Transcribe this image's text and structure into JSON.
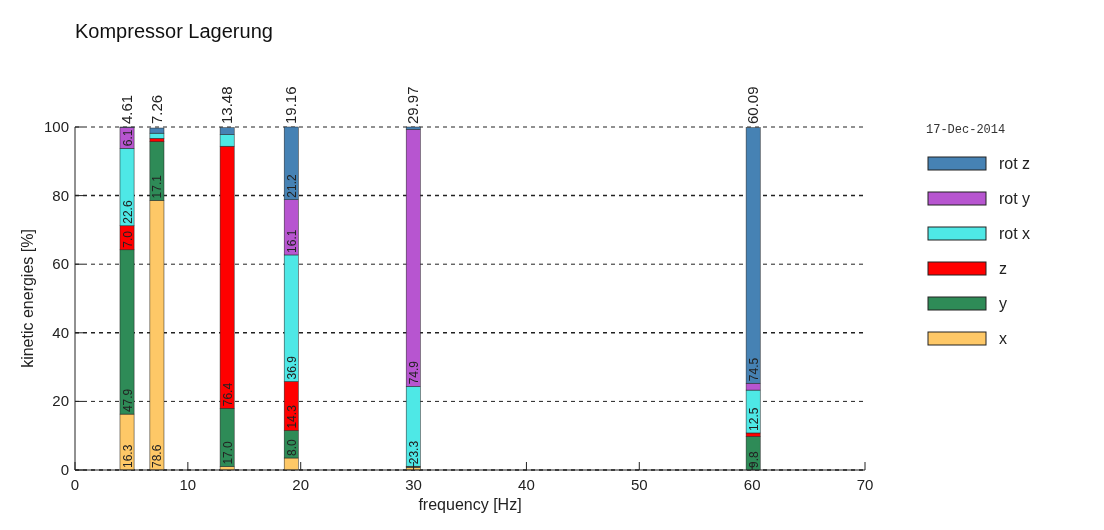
{
  "chart_data": {
    "type": "bar",
    "stacked": true,
    "title": "Kompressor Lagerung",
    "xlabel": "frequency [Hz]",
    "ylabel": "kinetic energies [%]",
    "legend_title": "17-Dec-2014",
    "x": [
      4.61,
      7.26,
      13.48,
      19.16,
      29.97,
      60.09
    ],
    "series": [
      {
        "name": "x",
        "color": "#fec867",
        "values": [
          16.3,
          78.6,
          1.0,
          3.5,
          0.8,
          null
        ],
        "value_labels": [
          "16.3",
          "78.6",
          null,
          null,
          null,
          null
        ]
      },
      {
        "name": "y",
        "color": "#2e8b57",
        "values": [
          47.9,
          17.1,
          17.0,
          8.0,
          0.2,
          9.8
        ],
        "value_labels": [
          "47.9",
          "17.1",
          "17.0",
          "8.0",
          null,
          "9.8"
        ]
      },
      {
        "name": "z",
        "color": "#ff0000",
        "values": [
          7.0,
          1.0,
          76.4,
          14.3,
          0.1,
          1.0
        ],
        "value_labels": [
          "7.0",
          null,
          "76.4",
          "14.3",
          null,
          null
        ]
      },
      {
        "name": "rot x",
        "color": "#4ee8e6",
        "values": [
          22.6,
          1.5,
          3.4,
          36.9,
          23.3,
          12.5
        ],
        "value_labels": [
          "22.6",
          null,
          null,
          "36.9",
          "23.3",
          "12.5"
        ]
      },
      {
        "name": "rot y",
        "color": "#b755d0",
        "values": [
          6.1,
          null,
          null,
          16.1,
          74.9,
          2.0
        ],
        "value_labels": [
          "6.1",
          null,
          null,
          "16.1",
          "74.9",
          null
        ]
      },
      {
        "name": "rot z",
        "color": "#4682b4",
        "values": [
          0.1,
          1.5,
          2.0,
          21.2,
          0.7,
          74.5
        ],
        "value_labels": [
          null,
          null,
          null,
          "21.2",
          null,
          "74.5"
        ]
      }
    ],
    "annotations": [
      {
        "text": "4.61",
        "x": 4.61,
        "y": 100
      },
      {
        "text": "7.26",
        "x": 7.26,
        "y": 100
      },
      {
        "text": "13.48",
        "x": 13.48,
        "y": 100
      },
      {
        "text": "19.16",
        "x": 19.16,
        "y": 100
      },
      {
        "text": "29.97",
        "x": 29.97,
        "y": 100
      },
      {
        "text": "60.09",
        "x": 60.09,
        "y": 100
      }
    ],
    "xlim": [
      0,
      70
    ],
    "xticks": [
      0,
      10,
      20,
      30,
      40,
      50,
      60,
      70
    ],
    "ylim": [
      0,
      100
    ],
    "yticks": [
      0,
      20,
      40,
      60,
      80,
      100
    ],
    "grid": "y",
    "legend": "right"
  }
}
